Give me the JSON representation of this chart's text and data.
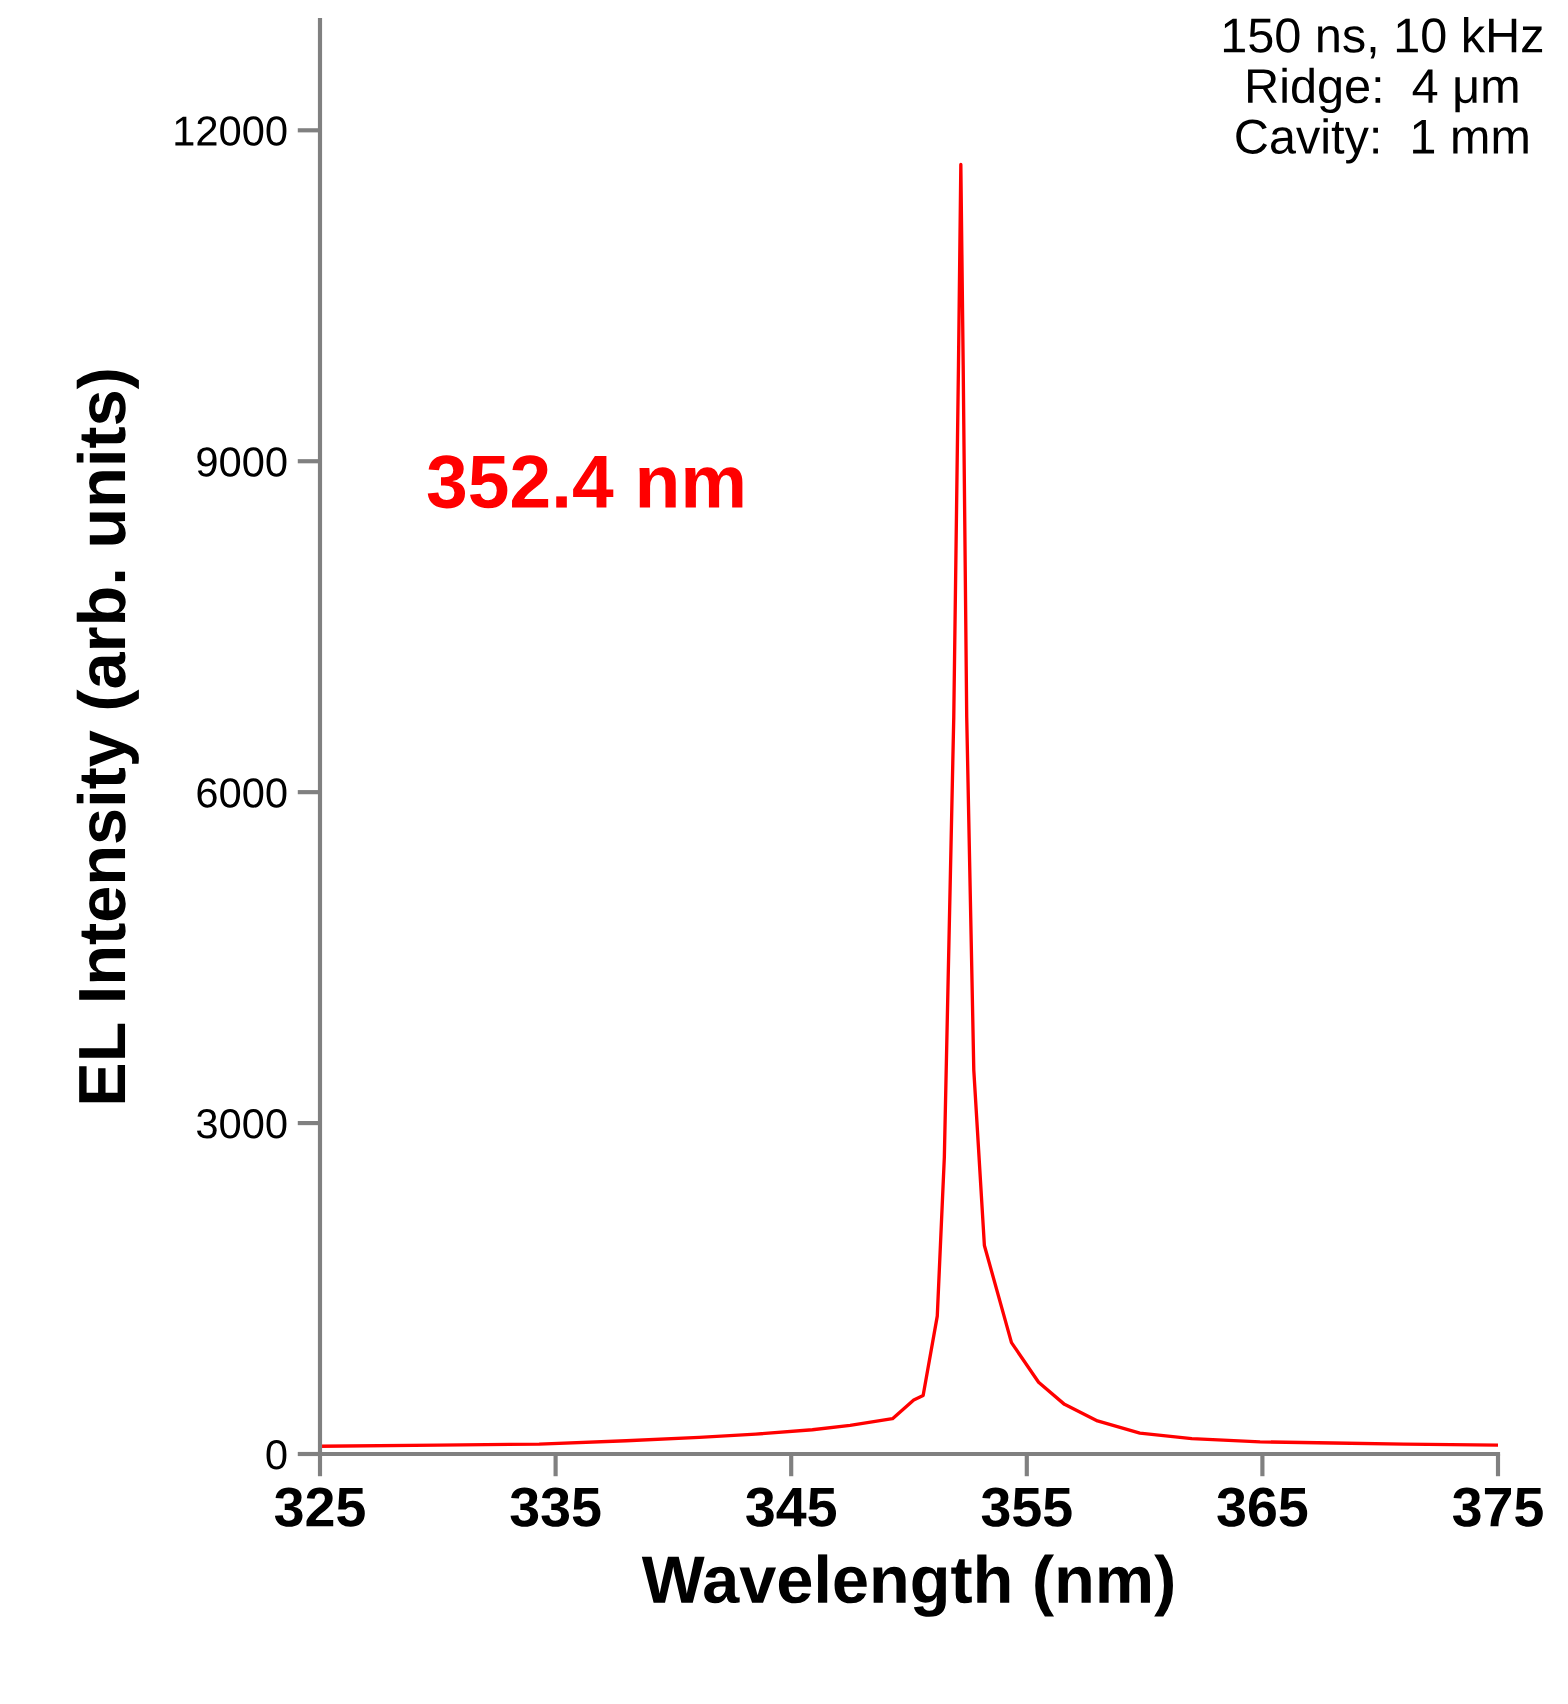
{
  "chart_data": {
    "type": "line",
    "xlabel": "Wavelength (nm)",
    "ylabel": "EL Intensity (arb. units)",
    "annotations": [
      "150 ns, 10 kHz\nRidge:  4 μm\nCavity:  1 mm",
      "352.4 nm"
    ],
    "series": [
      {
        "color": "#ff0000",
        "x": [
          325,
          330,
          334.3,
          338,
          341.1,
          343.5,
          345.9,
          347.5,
          349.3,
          350.2,
          350.6,
          351.2,
          351.5,
          351.9,
          352.1,
          352.2,
          352.3,
          352.45,
          352.75,
          353.2,
          354.35,
          355.5,
          356.6,
          358,
          359.8,
          362,
          364.9,
          368,
          371,
          375
        ],
        "values": [
          70,
          80,
          90,
          120,
          150,
          180,
          220,
          260,
          320,
          490,
          530,
          1250,
          2690,
          6680,
          9870,
          11690,
          9870,
          6680,
          3480,
          1890,
          1010,
          650,
          450,
          300,
          190,
          140,
          110,
          100,
          90,
          80
        ]
      }
    ],
    "xlim": [
      325,
      375
    ],
    "xticks": [
      325,
      335,
      345,
      355,
      365,
      375
    ],
    "ylim": [
      0,
      13000
    ],
    "yticks": [
      0,
      3000,
      6000,
      9000,
      12000
    ],
    "grid": false,
    "legend": false,
    "marker": "none",
    "line_style": "solid"
  }
}
